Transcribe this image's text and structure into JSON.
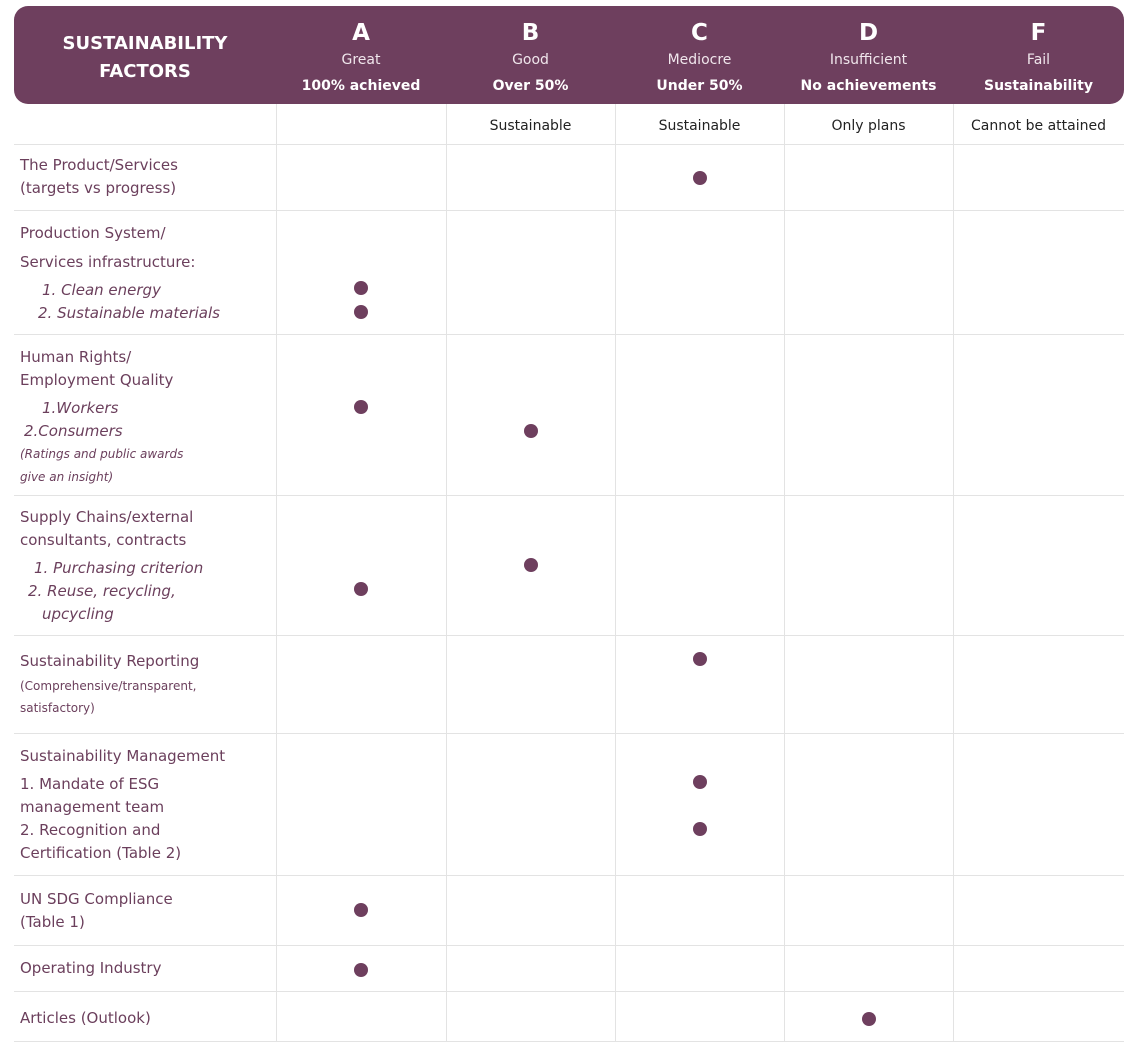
{
  "header": {
    "title": "SUSTAINABILITY FACTORS",
    "grades": [
      {
        "letter": "A",
        "name": "Great",
        "threshold": "100% achieved",
        "note": ""
      },
      {
        "letter": "B",
        "name": "Good",
        "threshold": "Over 50%",
        "note": "Sustainable"
      },
      {
        "letter": "C",
        "name": "Mediocre",
        "threshold": "Under 50%",
        "note": "Sustainable"
      },
      {
        "letter": "D",
        "name": "Insufficient",
        "threshold": "No achievements",
        "note": "Only plans"
      },
      {
        "letter": "F",
        "name": "Fail",
        "threshold": "Sustainability",
        "note": "Cannot be attained"
      }
    ]
  },
  "rows": [
    {
      "lines": [
        "The Product/Services",
        "(targets vs progress)"
      ],
      "ratings": [
        "C"
      ]
    },
    {
      "lines": [
        "Production System/",
        "Services infrastructure:",
        "1. Clean energy",
        "2. Sustainable materials"
      ],
      "ratings": [
        "A",
        "A"
      ]
    },
    {
      "lines": [
        "Human Rights/",
        "Employment Quality",
        "1.Workers",
        "2.Consumers",
        "(Ratings and public awards",
        "give an insight)"
      ],
      "ratings": [
        "A",
        "B"
      ]
    },
    {
      "lines": [
        "Supply Chains/external",
        "consultants, contracts",
        "1. Purchasing  criterion",
        "2. Reuse, recycling,",
        "upcycling"
      ],
      "ratings": [
        "B",
        "A"
      ]
    },
    {
      "lines": [
        "Sustainability Reporting",
        "(Comprehensive/transparent,",
        "satisfactory)"
      ],
      "ratings": [
        "C"
      ]
    },
    {
      "lines": [
        "Sustainability Management",
        "1. Mandate of ESG",
        "management team",
        "2. Recognition and",
        "Certification (Table 2)"
      ],
      "ratings": [
        "C",
        "C"
      ]
    },
    {
      "lines": [
        "UN SDG Compliance",
        "(Table 1)"
      ],
      "ratings": [
        "A"
      ]
    },
    {
      "lines": [
        "Operating Industry"
      ],
      "ratings": [
        "A"
      ]
    },
    {
      "lines": [
        "Articles (Outlook)"
      ],
      "ratings": [
        "D"
      ]
    }
  ]
}
